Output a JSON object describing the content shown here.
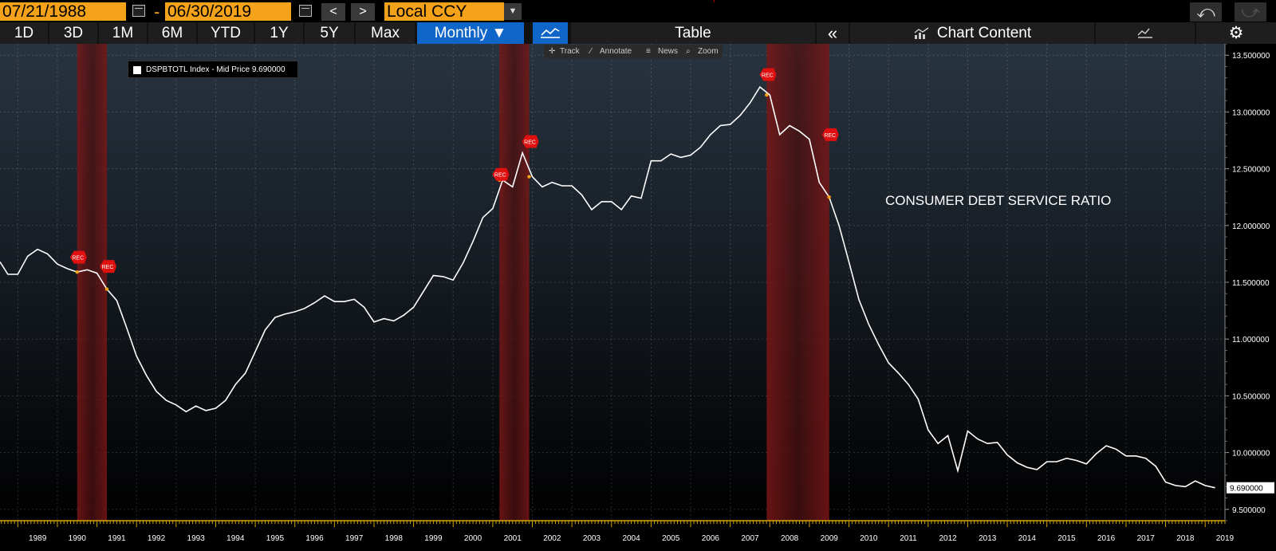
{
  "toolbar": {
    "start_date": "07/21/1988",
    "end_date": "06/30/2019",
    "date_separator": "-",
    "prev_label": "<",
    "next_label": ">",
    "currency": "Local CCY",
    "undo_icon": "undo-icon",
    "redo_icon": "redo-icon"
  },
  "tabs": {
    "ranges": [
      "1D",
      "3D",
      "1M",
      "6M",
      "YTD",
      "1Y",
      "5Y",
      "Max"
    ],
    "frequency": "Monthly ▼",
    "table_label": "Table",
    "collapse_label": "«",
    "chart_content_label": "Chart Content"
  },
  "chart_tools": [
    "Track",
    "Annotate",
    "News",
    "Zoom"
  ],
  "legend": {
    "text": "DSPBTOTL Index - Mid Price 9.690000"
  },
  "annotation": "CONSUMER DEBT SERVICE RATIO",
  "colors": {
    "accent_orange": "#f5a21b",
    "active_tab": "#1066c8",
    "recession_band": "#8b1a1a",
    "line": "#ffffff",
    "axis": "#d6a400"
  },
  "chart_data": {
    "type": "line",
    "ylim": [
      9.4,
      13.6
    ],
    "xlim": [
      1988.55,
      2019.5
    ],
    "yticks": [
      9.5,
      10.0,
      10.5,
      11.0,
      11.5,
      12.0,
      12.5,
      13.0,
      13.5
    ],
    "ytick_labels": [
      "9.500000",
      "10.000000",
      "10.500000",
      "11.000000",
      "11.500000",
      "12.000000",
      "12.500000",
      "13.000000",
      "13.500000"
    ],
    "xtick_labels": [
      "1989",
      "1990",
      "1991",
      "1992",
      "1993",
      "1994",
      "1995",
      "1996",
      "1997",
      "1998",
      "1999",
      "2000",
      "2001",
      "2002",
      "2003",
      "2004",
      "2005",
      "2006",
      "2007",
      "2008",
      "2009",
      "2010",
      "2011",
      "2012",
      "2013",
      "2014",
      "2015",
      "2016",
      "2017",
      "2018",
      "2019"
    ],
    "last_value_label": "9.690000",
    "recession_label": "REC",
    "recessions": [
      [
        1990.5,
        1991.25
      ],
      [
        2001.17,
        2001.92
      ],
      [
        2007.92,
        2009.5
      ]
    ],
    "recession_markers": [
      {
        "x": 1990.5,
        "y": 11.72
      },
      {
        "x": 1991.25,
        "y": 11.64
      },
      {
        "x": 2001.17,
        "y": 12.45
      },
      {
        "x": 2001.92,
        "y": 12.74
      },
      {
        "x": 2007.92,
        "y": 13.33
      },
      {
        "x": 2009.5,
        "y": 12.8
      }
    ],
    "series": [
      {
        "x": [
          1988.55,
          1988.75,
          1989.0,
          1989.25,
          1989.5,
          1989.75,
          1990.0,
          1990.25,
          1990.5,
          1990.75,
          1991.0,
          1991.25,
          1991.5,
          1991.75,
          1992.0,
          1992.25,
          1992.5,
          1992.75,
          1993.0,
          1993.25,
          1993.5,
          1993.75,
          1994.0,
          1994.25,
          1994.5,
          1994.75,
          1995.0,
          1995.25,
          1995.5,
          1995.75,
          1996.0,
          1996.25,
          1996.5,
          1996.75,
          1997.0,
          1997.25,
          1997.5,
          1997.75,
          1998.0,
          1998.25,
          1998.5,
          1998.75,
          1999.0,
          1999.25,
          1999.5,
          1999.75,
          2000.0,
          2000.25,
          2000.5,
          2000.75,
          2001.0,
          2001.25,
          2001.5,
          2001.75,
          2002.0,
          2002.25,
          2002.5,
          2002.75,
          2003.0,
          2003.25,
          2003.5,
          2003.75,
          2004.0,
          2004.25,
          2004.5,
          2004.75,
          2005.0,
          2005.25,
          2005.5,
          2005.75,
          2006.0,
          2006.25,
          2006.5,
          2006.75,
          2007.0,
          2007.25,
          2007.5,
          2007.75,
          2008.0,
          2008.25,
          2008.5,
          2008.75,
          2009.0,
          2009.25,
          2009.5,
          2009.75,
          2010.0,
          2010.25,
          2010.5,
          2010.75,
          2011.0,
          2011.25,
          2011.5,
          2011.75,
          2012.0,
          2012.25,
          2012.5,
          2012.75,
          2013.0,
          2013.25,
          2013.5,
          2013.75,
          2014.0,
          2014.25,
          2014.5,
          2014.75,
          2015.0,
          2015.25,
          2015.5,
          2015.75,
          2016.0,
          2016.25,
          2016.5,
          2016.75,
          2017.0,
          2017.25,
          2017.5,
          2017.75,
          2018.0,
          2018.25,
          2018.5,
          2018.75,
          2019.0,
          2019.25
        ],
        "y": [
          11.68,
          11.57,
          11.57,
          11.73,
          11.79,
          11.75,
          11.66,
          11.62,
          11.59,
          11.61,
          11.58,
          11.44,
          11.34,
          11.1,
          10.85,
          10.68,
          10.54,
          10.46,
          10.42,
          10.36,
          10.41,
          10.37,
          10.39,
          10.46,
          10.6,
          10.7,
          10.89,
          11.08,
          11.19,
          11.22,
          11.24,
          11.27,
          11.32,
          11.38,
          11.33,
          11.33,
          11.35,
          11.28,
          11.15,
          11.18,
          11.16,
          11.21,
          11.28,
          11.42,
          11.56,
          11.55,
          11.52,
          11.67,
          11.86,
          12.07,
          12.15,
          12.4,
          12.34,
          12.64,
          12.43,
          12.34,
          12.38,
          12.35,
          12.35,
          12.27,
          12.14,
          12.21,
          12.21,
          12.14,
          12.26,
          12.24,
          12.57,
          12.57,
          12.63,
          12.6,
          12.62,
          12.69,
          12.8,
          12.88,
          12.89,
          12.97,
          13.08,
          13.22,
          13.15,
          12.8,
          12.88,
          12.83,
          12.76,
          12.38,
          12.25,
          12.0,
          11.68,
          11.35,
          11.13,
          10.95,
          10.79,
          10.7,
          10.6,
          10.47,
          10.2,
          10.08,
          10.15,
          9.84,
          10.19,
          10.12,
          10.08,
          10.09,
          9.98,
          9.91,
          9.87,
          9.85,
          9.92,
          9.92,
          9.95,
          9.93,
          9.9,
          9.99,
          10.06,
          10.03,
          9.97,
          9.97,
          9.95,
          9.88,
          9.74,
          9.71,
          9.7,
          9.75,
          9.71,
          9.69
        ]
      }
    ]
  }
}
